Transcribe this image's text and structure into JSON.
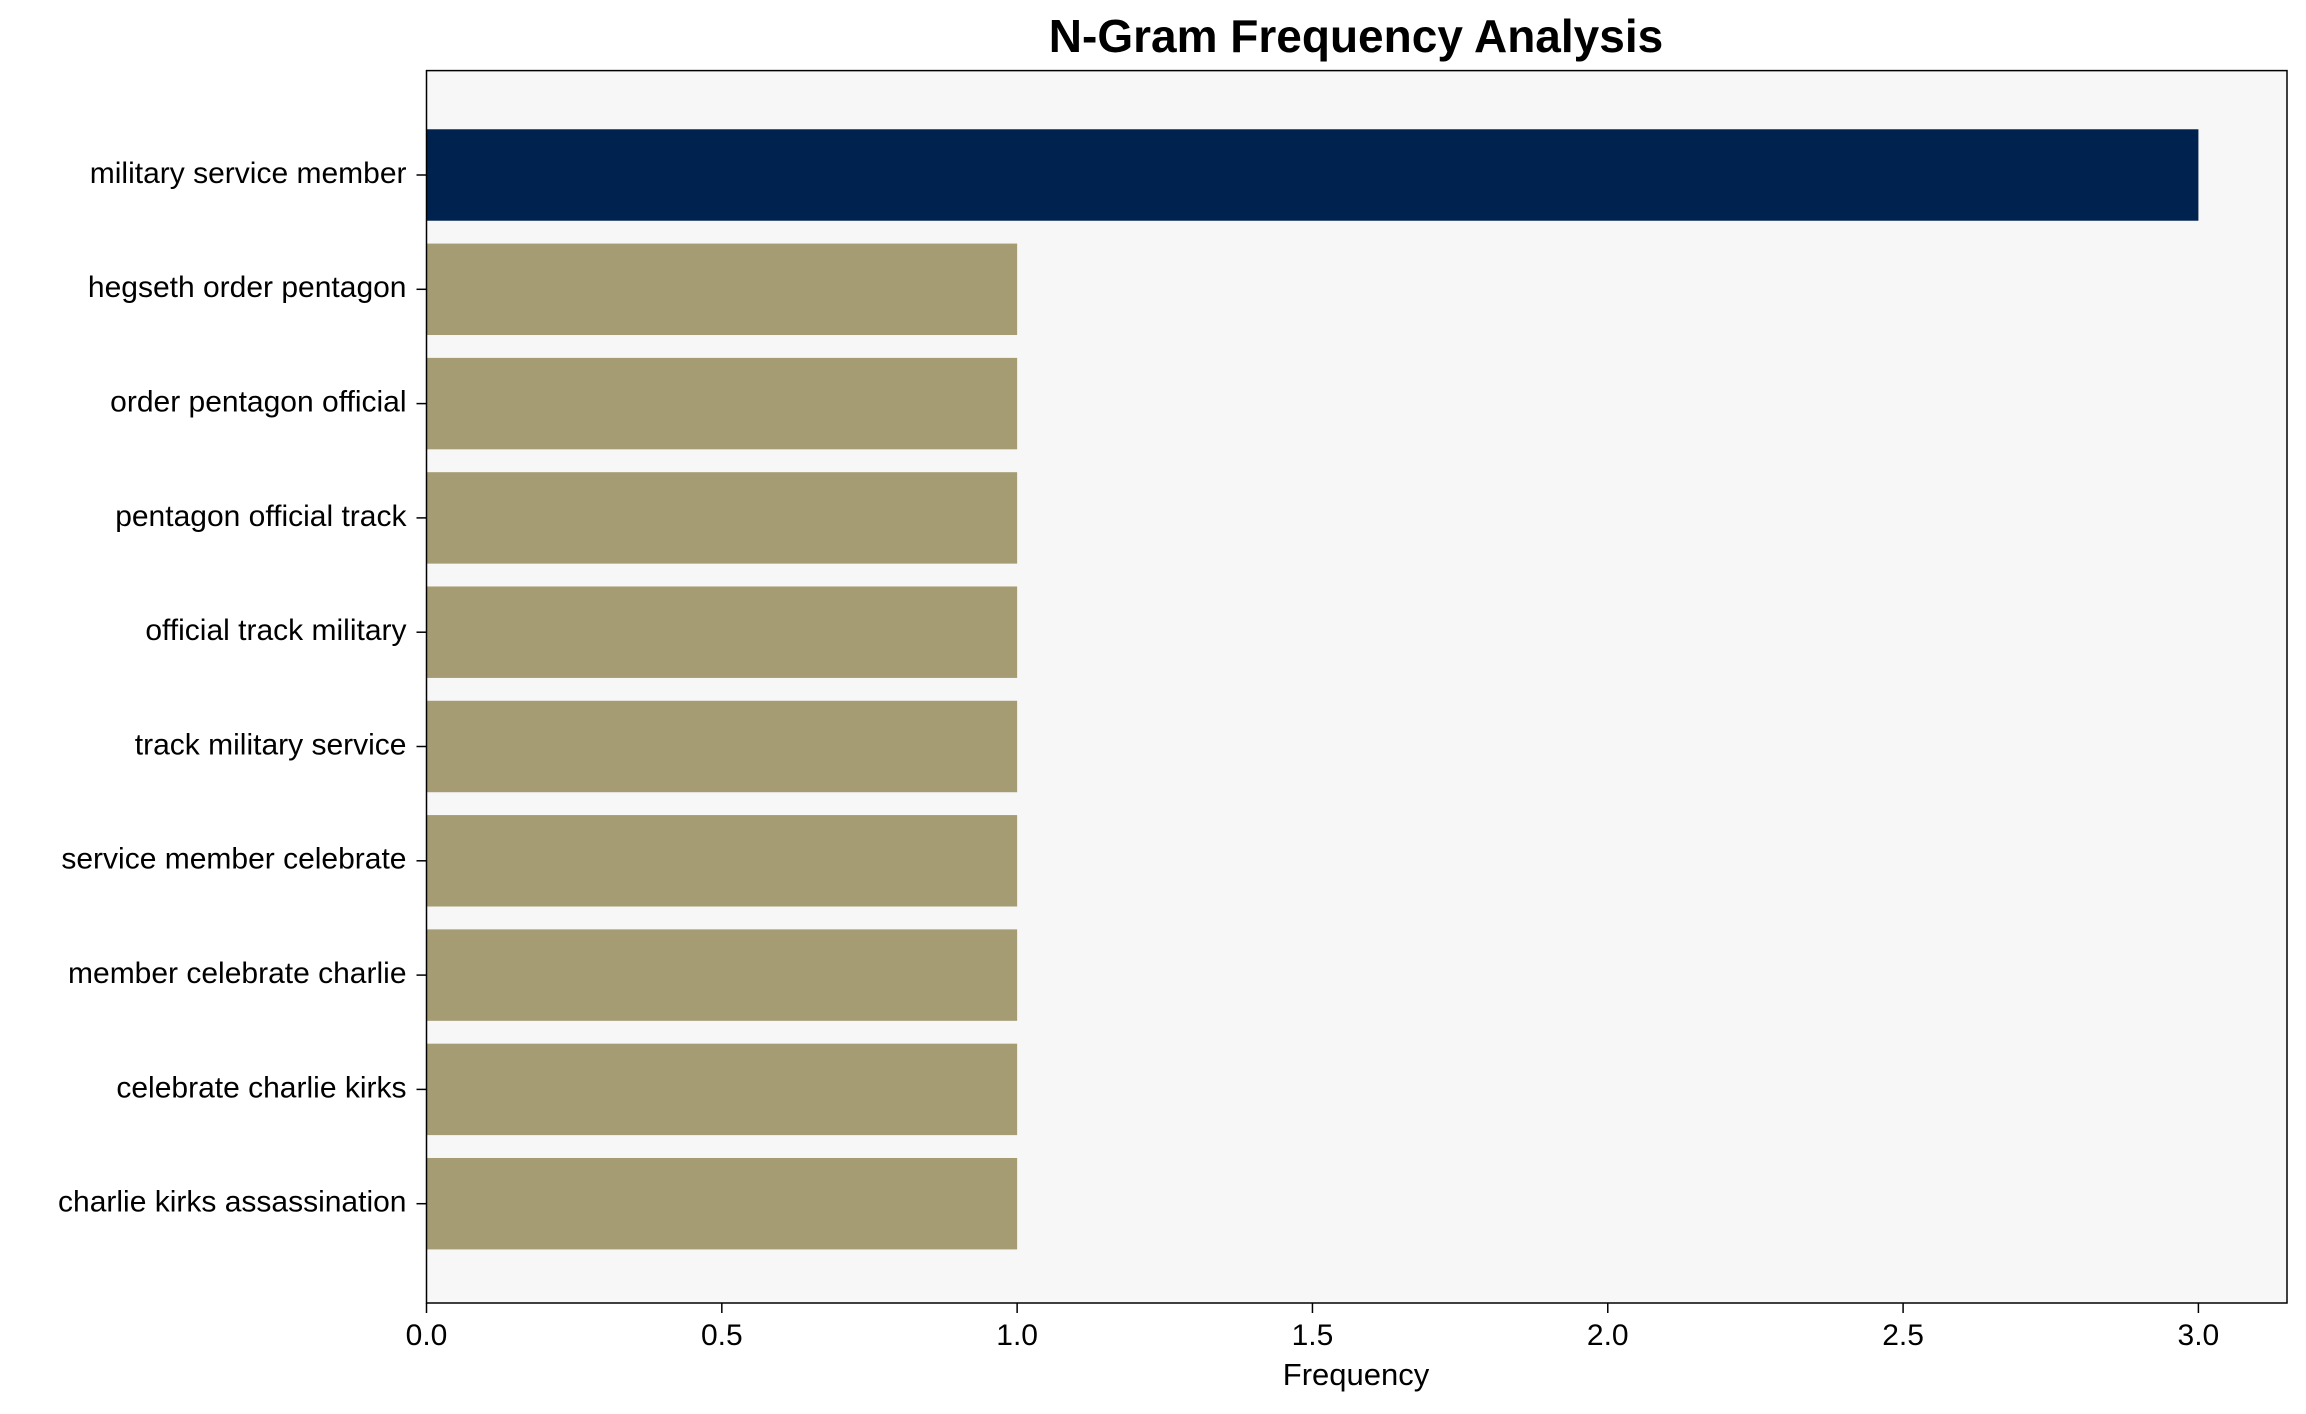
{
  "chart_data": {
    "type": "bar",
    "orientation": "horizontal",
    "title": "N-Gram Frequency Analysis",
    "x_label": "Frequency",
    "categories": [
      "military service member",
      "hegseth order pentagon",
      "order pentagon official",
      "pentagon official track",
      "official track military",
      "track military service",
      "service member celebrate",
      "member celebrate charlie",
      "celebrate charlie kirks",
      "charlie kirks assassination"
    ],
    "values": [
      3,
      1,
      1,
      1,
      1,
      1,
      1,
      1,
      1,
      1
    ],
    "colors": [
      "#00224e",
      "#a59c74",
      "#a59c74",
      "#a59c74",
      "#a59c74",
      "#a59c74",
      "#a59c74",
      "#a59c74",
      "#a59c74",
      "#a59c74"
    ],
    "xlim": [
      0,
      3.15
    ],
    "xticks": [
      {
        "value": 0,
        "label": "0.0"
      },
      0.5,
      {
        "value": 1,
        "label": "1.0"
      },
      1.5,
      {
        "value": 2,
        "label": "2.0"
      },
      2.5,
      {
        "value": 3,
        "label": "3.0"
      }
    ],
    "grid": false
  }
}
